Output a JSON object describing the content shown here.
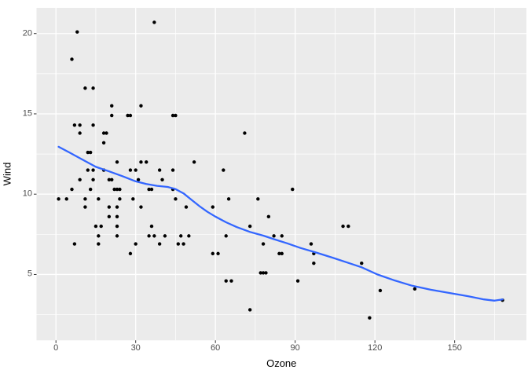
{
  "chart_data": {
    "type": "scatter",
    "title": "",
    "xlabel": "Ozone",
    "ylabel": "Wind",
    "x_ticks": [
      0,
      30,
      60,
      90,
      120,
      150
    ],
    "y_ticks": [
      5,
      10,
      15,
      20
    ],
    "x_minor_ticks": [
      15,
      45,
      75,
      105,
      135,
      165
    ],
    "y_minor_ticks": [
      2.5,
      7.5,
      12.5,
      17.5
    ],
    "xlim": [
      -7.3,
      177
    ],
    "ylim": [
      0.9,
      21.6
    ],
    "grid": "major+minor",
    "legend_position": "none",
    "series": [
      {
        "name": "observations",
        "type": "scatter",
        "color": "#000000",
        "data": [
          [
            37,
            20.7
          ],
          [
            8,
            20.1
          ],
          [
            6,
            18.4
          ],
          [
            11,
            16.6
          ],
          [
            14,
            16.6
          ],
          [
            21,
            15.5
          ],
          [
            32,
            15.5
          ],
          [
            21,
            14.9
          ],
          [
            27,
            14.9
          ],
          [
            28,
            14.9
          ],
          [
            44,
            14.9
          ],
          [
            45,
            14.9
          ],
          [
            7,
            14.3
          ],
          [
            9,
            14.3
          ],
          [
            14,
            14.3
          ],
          [
            9,
            13.8
          ],
          [
            18,
            13.8
          ],
          [
            19,
            13.8
          ],
          [
            71,
            13.8
          ],
          [
            18,
            13.2
          ],
          [
            12,
            12.6
          ],
          [
            13,
            12.6
          ],
          [
            23,
            12
          ],
          [
            32,
            12
          ],
          [
            34,
            12
          ],
          [
            52,
            12
          ],
          [
            12,
            11.5
          ],
          [
            14,
            11.5
          ],
          [
            18,
            11.5
          ],
          [
            28,
            11.5
          ],
          [
            30,
            11.5
          ],
          [
            39,
            11.5
          ],
          [
            44,
            11.5
          ],
          [
            63,
            11.5
          ],
          [
            9,
            10.9
          ],
          [
            14,
            10.9
          ],
          [
            20,
            10.9
          ],
          [
            21,
            10.9
          ],
          [
            31,
            10.9
          ],
          [
            40,
            10.9
          ],
          [
            6,
            10.3
          ],
          [
            13,
            10.3
          ],
          [
            22,
            10.3
          ],
          [
            23,
            10.3
          ],
          [
            24,
            10.3
          ],
          [
            35,
            10.3
          ],
          [
            36,
            10.3
          ],
          [
            44,
            10.3
          ],
          [
            89,
            10.3
          ],
          [
            1,
            9.7
          ],
          [
            4,
            9.7
          ],
          [
            11,
            9.7
          ],
          [
            16,
            9.7
          ],
          [
            24,
            9.7
          ],
          [
            29,
            9.7
          ],
          [
            45,
            9.7
          ],
          [
            65,
            9.7
          ],
          [
            76,
            9.7
          ],
          [
            11,
            9.2
          ],
          [
            20,
            9.2
          ],
          [
            23,
            9.2
          ],
          [
            32,
            9.2
          ],
          [
            49,
            9.2
          ],
          [
            59,
            9.2
          ],
          [
            20,
            8.6
          ],
          [
            23,
            8.6
          ],
          [
            80,
            8.6
          ],
          [
            15,
            8
          ],
          [
            17,
            8
          ],
          [
            23,
            8
          ],
          [
            36,
            8
          ],
          [
            73,
            8
          ],
          [
            108,
            8
          ],
          [
            110,
            8
          ],
          [
            16,
            7.4
          ],
          [
            23,
            7.4
          ],
          [
            35,
            7.4
          ],
          [
            37,
            7.4
          ],
          [
            41,
            7.4
          ],
          [
            47,
            7.4
          ],
          [
            50,
            7.4
          ],
          [
            64,
            7.4
          ],
          [
            82,
            7.4
          ],
          [
            85,
            7.4
          ],
          [
            7,
            6.9
          ],
          [
            16,
            6.9
          ],
          [
            30,
            6.9
          ],
          [
            39,
            6.9
          ],
          [
            46,
            6.9
          ],
          [
            48,
            6.9
          ],
          [
            78,
            6.9
          ],
          [
            96,
            6.9
          ],
          [
            28,
            6.3
          ],
          [
            59,
            6.3
          ],
          [
            61,
            6.3
          ],
          [
            84,
            6.3
          ],
          [
            85,
            6.3
          ],
          [
            97,
            6.3
          ],
          [
            97,
            5.7
          ],
          [
            115,
            5.7
          ],
          [
            77,
            5.1
          ],
          [
            78,
            5.1
          ],
          [
            79,
            5.1
          ],
          [
            64,
            4.6
          ],
          [
            66,
            4.6
          ],
          [
            91,
            4.6
          ],
          [
            135,
            4.1
          ],
          [
            122,
            4
          ],
          [
            168,
            3.4
          ],
          [
            73,
            2.8
          ],
          [
            118,
            2.3
          ]
        ]
      },
      {
        "name": "loess-smooth",
        "type": "line",
        "color": "#3366FF",
        "data": [
          [
            1,
            12.95
          ],
          [
            5,
            12.6
          ],
          [
            10,
            12.15
          ],
          [
            15,
            11.7
          ],
          [
            20,
            11.42
          ],
          [
            25,
            11.12
          ],
          [
            30,
            10.8
          ],
          [
            34,
            10.63
          ],
          [
            38,
            10.52
          ],
          [
            42,
            10.45
          ],
          [
            45,
            10.32
          ],
          [
            48,
            10.05
          ],
          [
            51,
            9.65
          ],
          [
            54,
            9.25
          ],
          [
            57,
            8.9
          ],
          [
            60,
            8.6
          ],
          [
            64,
            8.25
          ],
          [
            68,
            7.95
          ],
          [
            73,
            7.65
          ],
          [
            78,
            7.42
          ],
          [
            82,
            7.2
          ],
          [
            87,
            6.94
          ],
          [
            92,
            6.65
          ],
          [
            98,
            6.36
          ],
          [
            104,
            6.05
          ],
          [
            110,
            5.72
          ],
          [
            115,
            5.45
          ],
          [
            121,
            5.0
          ],
          [
            127,
            4.65
          ],
          [
            134,
            4.3
          ],
          [
            141,
            4.05
          ],
          [
            148,
            3.85
          ],
          [
            155,
            3.65
          ],
          [
            161,
            3.45
          ],
          [
            165,
            3.37
          ],
          [
            168,
            3.45
          ]
        ]
      }
    ],
    "style": {
      "background": "#FFFFFF",
      "panel_bg": "#EBEBEB",
      "grid_color": "#FFFFFF",
      "axis_text_color": "#4D4D4D",
      "axis_title_color": "#000000",
      "tick_mark_color": "#333333",
      "point_radius": 2.2,
      "line_width": 2.3
    }
  }
}
